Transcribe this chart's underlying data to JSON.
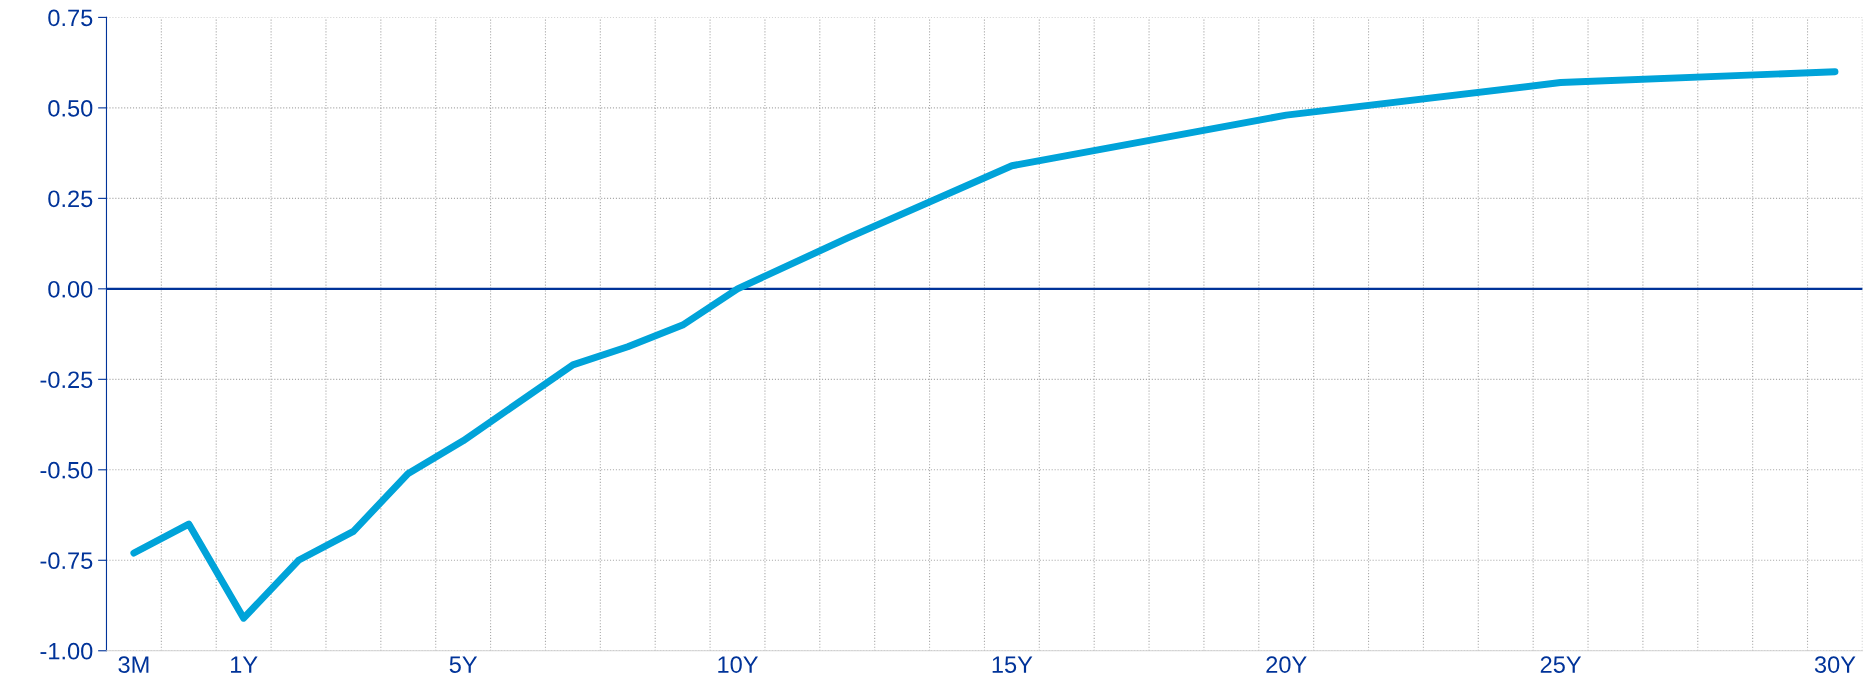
{
  "chart_data": {
    "type": "line",
    "categories": [
      "3M",
      null,
      "1Y",
      null,
      null,
      null,
      "5Y",
      null,
      null,
      null,
      null,
      "10Y",
      null,
      null,
      null,
      null,
      "15Y",
      null,
      null,
      null,
      null,
      "20Y",
      null,
      null,
      null,
      null,
      "25Y",
      null,
      null,
      null,
      null,
      "30Y"
    ],
    "series": [
      {
        "color": "#00a3d9",
        "values": [
          -0.73,
          -0.65,
          -0.91,
          -0.75,
          -0.67,
          -0.51,
          -0.42,
          null,
          -0.21,
          -0.16,
          -0.1,
          0.0,
          null,
          0.14,
          null,
          null,
          0.34,
          null,
          null,
          null,
          null,
          0.48,
          null,
          null,
          null,
          null,
          0.57,
          null,
          null,
          null,
          null,
          0.6
        ]
      }
    ],
    "ylim": [
      -1.0,
      0.75
    ],
    "yticks": [
      {
        "value": -1.0,
        "label": "-1.00"
      },
      {
        "value": -0.75,
        "label": "-0.75"
      },
      {
        "value": -0.5,
        "label": "-0.50"
      },
      {
        "value": -0.25,
        "label": "-0.25"
      },
      {
        "value": 0.0,
        "label": "0.00"
      },
      {
        "value": 0.25,
        "label": "0.25"
      },
      {
        "value": 0.5,
        "label": "0.50"
      },
      {
        "value": 0.75,
        "label": "0.75"
      }
    ],
    "ref_lines": [
      {
        "axis": "y",
        "value": 0,
        "color": "#003399"
      }
    ],
    "grid": true,
    "line_style": "solid",
    "marker": "none"
  }
}
